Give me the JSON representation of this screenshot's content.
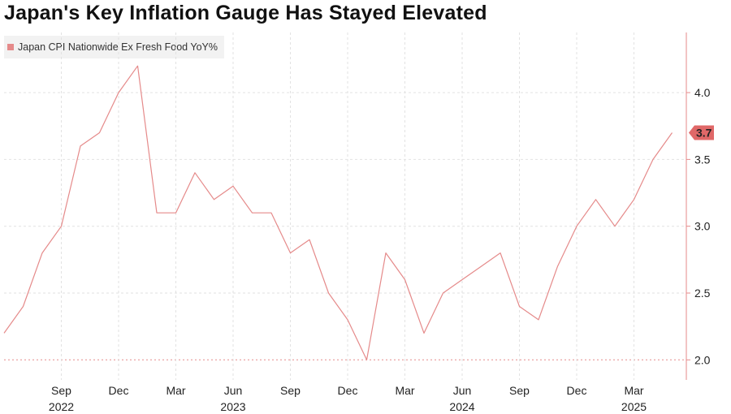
{
  "colors": {
    "series": "#e58a8a",
    "grid": "#e2e2e2",
    "axis": "#e58a8a",
    "text": "#222222",
    "last_value_bg": "#e06868"
  },
  "chart_data": {
    "type": "line",
    "title": "Japan's Key Inflation Gauge Has Stayed Elevated",
    "ylim": [
      1.85,
      4.45
    ],
    "y_ticks": [
      2.0,
      2.5,
      3.0,
      3.5,
      4.0
    ],
    "y_tick_labels": [
      "2.0",
      "2.5",
      "3.0",
      "3.5",
      "4.0"
    ],
    "legend_position": "top-left",
    "grid": true,
    "last_value_label": "3.7",
    "x_tick_labels": [
      {
        "label": "Sep",
        "index": 3
      },
      {
        "label": "Dec",
        "index": 6
      },
      {
        "label": "Mar",
        "index": 9
      },
      {
        "label": "Jun",
        "index": 12
      },
      {
        "label": "Sep",
        "index": 15
      },
      {
        "label": "Dec",
        "index": 18
      },
      {
        "label": "Mar",
        "index": 21
      },
      {
        "label": "Jun",
        "index": 24
      },
      {
        "label": "Sep",
        "index": 27
      },
      {
        "label": "Dec",
        "index": 30
      },
      {
        "label": "Mar",
        "index": 33
      }
    ],
    "year_labels": [
      {
        "label": "2022",
        "index": 3
      },
      {
        "label": "2023",
        "index": 12
      },
      {
        "label": "2024",
        "index": 24
      },
      {
        "label": "2025",
        "index": 33
      }
    ],
    "series": [
      {
        "name": "Japan CPI Nationwide Ex Fresh Food YoY%",
        "x": [
          "2022-06",
          "2022-07",
          "2022-08",
          "2022-09",
          "2022-10",
          "2022-11",
          "2022-12",
          "2023-01",
          "2023-02",
          "2023-03",
          "2023-04",
          "2023-05",
          "2023-06",
          "2023-07",
          "2023-08",
          "2023-09",
          "2023-10",
          "2023-11",
          "2023-12",
          "2024-01",
          "2024-02",
          "2024-03",
          "2024-04",
          "2024-05",
          "2024-06",
          "2024-07",
          "2024-08",
          "2024-09",
          "2024-10",
          "2024-11",
          "2024-12",
          "2025-01",
          "2025-02",
          "2025-03",
          "2025-04",
          "2025-05"
        ],
        "values": [
          2.2,
          2.4,
          2.8,
          3.0,
          3.6,
          3.7,
          4.0,
          4.2,
          3.1,
          3.1,
          3.4,
          3.2,
          3.3,
          3.1,
          3.1,
          2.8,
          2.9,
          2.5,
          2.3,
          2.0,
          2.8,
          2.6,
          2.2,
          2.5,
          2.6,
          2.7,
          2.8,
          2.4,
          2.3,
          2.7,
          3.0,
          3.2,
          3.0,
          3.2,
          3.5,
          3.7
        ]
      }
    ]
  }
}
